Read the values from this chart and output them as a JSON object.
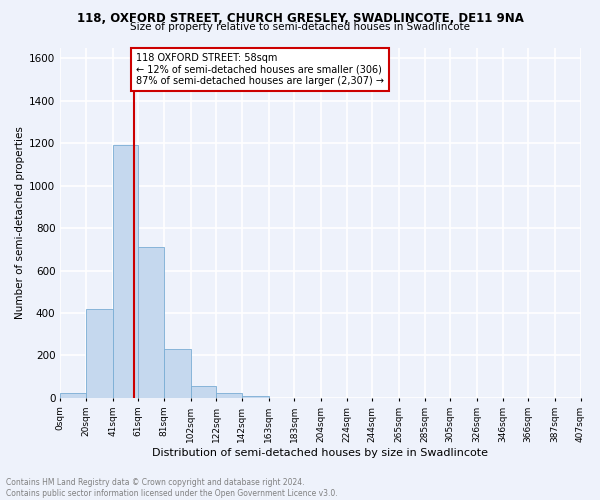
{
  "title1": "118, OXFORD STREET, CHURCH GRESLEY, SWADLINCOTE, DE11 9NA",
  "title2": "Size of property relative to semi-detached houses in Swadlincote",
  "xlabel": "Distribution of semi-detached houses by size in Swadlincote",
  "ylabel": "Number of semi-detached properties",
  "footer1": "Contains HM Land Registry data © Crown copyright and database right 2024.",
  "footer2": "Contains public sector information licensed under the Open Government Licence v3.0.",
  "property_size": 58,
  "annotation_line1": "118 OXFORD STREET: 58sqm",
  "annotation_line2": "← 12% of semi-detached houses are smaller (306)",
  "annotation_line3": "87% of semi-detached houses are larger (2,307) →",
  "bin_edges": [
    0,
    20,
    41,
    61,
    81,
    102,
    122,
    142,
    163,
    183,
    204,
    224,
    244,
    265,
    285,
    305,
    326,
    346,
    366,
    387,
    407
  ],
  "bar_heights": [
    25,
    420,
    1190,
    710,
    230,
    55,
    25,
    10,
    0,
    0,
    0,
    0,
    0,
    0,
    0,
    0,
    0,
    0,
    0,
    0
  ],
  "bar_color": "#c5d8ee",
  "bar_edge_color": "#7aadd4",
  "vline_color": "#cc0000",
  "vline_x": 58,
  "annotation_box_color": "#cc0000",
  "background_color": "#eef2fb",
  "grid_color": "#ffffff",
  "ylim": [
    0,
    1650
  ],
  "yticks": [
    0,
    200,
    400,
    600,
    800,
    1000,
    1200,
    1400,
    1600
  ],
  "xtick_labels": [
    "0sqm",
    "20sqm",
    "41sqm",
    "61sqm",
    "81sqm",
    "102sqm",
    "122sqm",
    "142sqm",
    "163sqm",
    "183sqm",
    "204sqm",
    "224sqm",
    "244sqm",
    "265sqm",
    "285sqm",
    "305sqm",
    "326sqm",
    "346sqm",
    "366sqm",
    "387sqm",
    "407sqm"
  ]
}
